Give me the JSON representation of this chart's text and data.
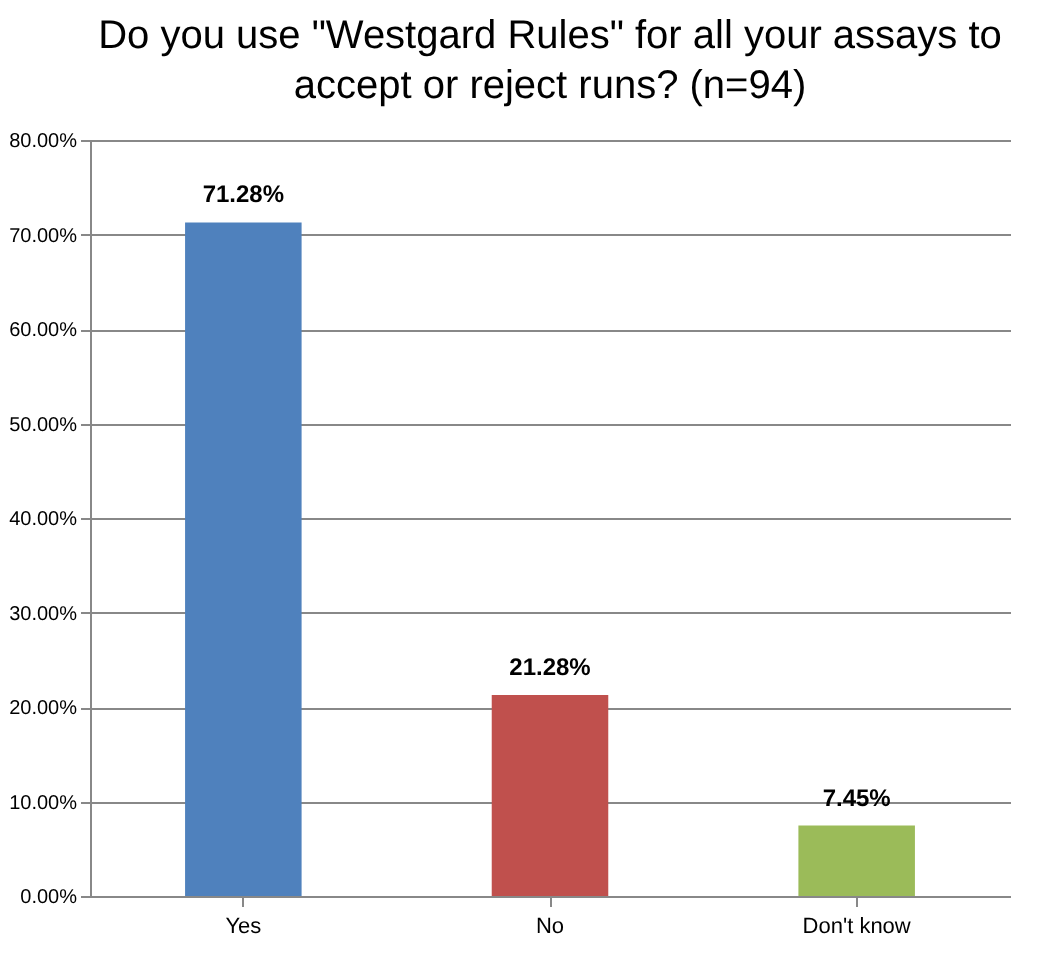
{
  "chart_data": {
    "type": "bar",
    "title": "Do you use \"Westgard Rules\" for all your assays to accept or reject runs? (n=94)",
    "categories": [
      "Yes",
      "No",
      "Don't know"
    ],
    "values": [
      71.28,
      21.28,
      7.45
    ],
    "colors": [
      "#4f81bd",
      "#c0504d",
      "#9bbb59"
    ],
    "value_labels": [
      "71.28%",
      "21.28%",
      "7.45%"
    ],
    "ylim": [
      0,
      80
    ],
    "yticks": [
      {
        "value": 0,
        "label": "0.00%"
      },
      {
        "value": 10,
        "label": "10.00%"
      },
      {
        "value": 20,
        "label": "20.00%"
      },
      {
        "value": 30,
        "label": "30.00%"
      },
      {
        "value": 40,
        "label": "40.00%"
      },
      {
        "value": 50,
        "label": "50.00%"
      },
      {
        "value": 60,
        "label": "60.00%"
      },
      {
        "value": 70,
        "label": "70.00%"
      },
      {
        "value": 80,
        "label": "80.00%"
      }
    ],
    "grid": "y"
  }
}
